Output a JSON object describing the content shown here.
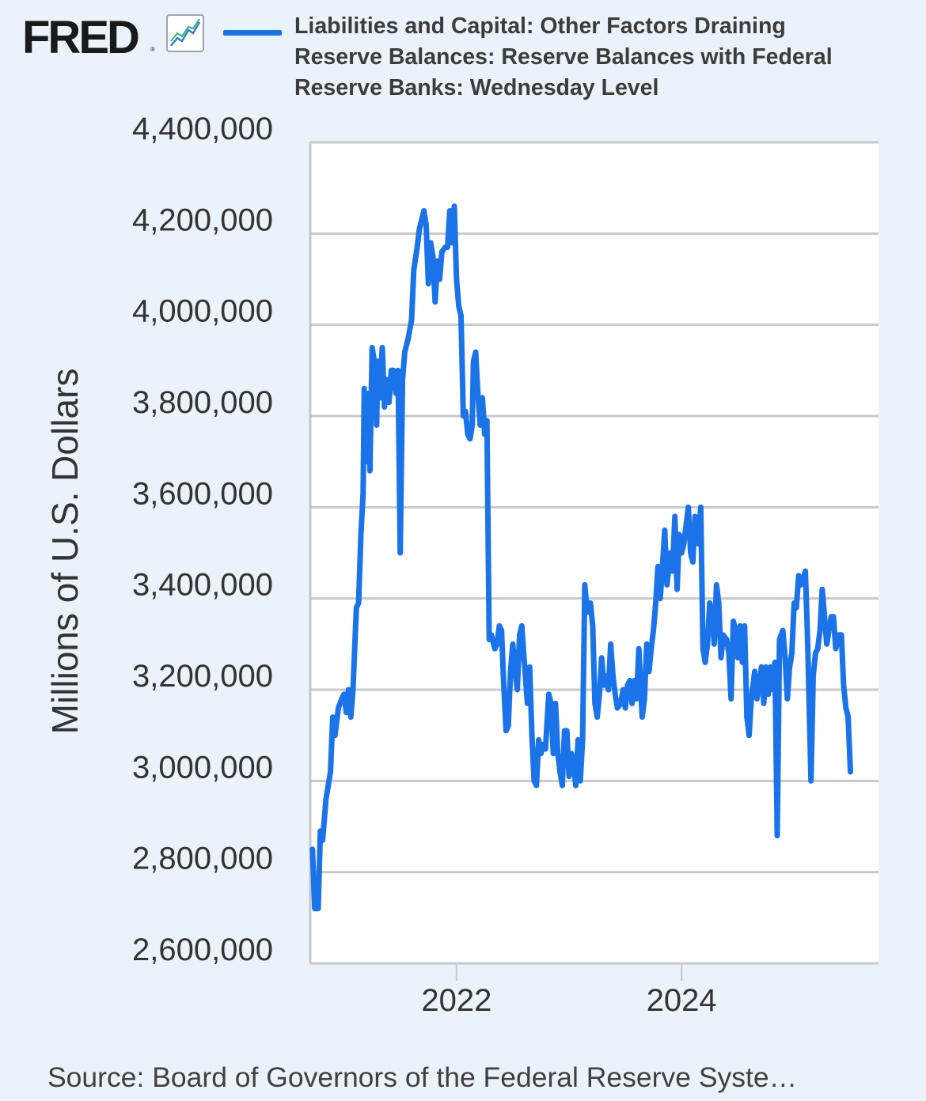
{
  "header": {
    "logo_text": "FRED",
    "logo_reg": "®",
    "logo_icon": "trend-chart-icon"
  },
  "colors": {
    "background": "#eaf2fa",
    "plot_background": "#ffffff",
    "series": "#1a73e8",
    "grid": "#c8c8c8"
  },
  "chart_data": {
    "type": "line",
    "legend": "Liabilities and Capital: Other Factors Draining Reserve Balances: Reserve Balances with Federal Reserve Banks: Wednesday Level",
    "ylabel": "Millions of U.S. Dollars",
    "xlabel": "",
    "x_unit": "year (decimal)",
    "xlim": [
      2020.7,
      2025.75
    ],
    "ylim": [
      2600000,
      4400000
    ],
    "x_ticks": [
      {
        "value": 2022,
        "label": "2022"
      },
      {
        "value": 2024,
        "label": "2024"
      }
    ],
    "y_ticks": [
      {
        "value": 4400000,
        "label": "4,400,000"
      },
      {
        "value": 4200000,
        "label": "4,200,000"
      },
      {
        "value": 4000000,
        "label": "4,000,000"
      },
      {
        "value": 3800000,
        "label": "3,800,000"
      },
      {
        "value": 3600000,
        "label": "3,600,000"
      },
      {
        "value": 3400000,
        "label": "3,400,000"
      },
      {
        "value": 3200000,
        "label": "3,200,000"
      },
      {
        "value": 3000000,
        "label": "3,000,000"
      },
      {
        "value": 2800000,
        "label": "2,800,000"
      },
      {
        "value": 2600000,
        "label": "2,600,000"
      }
    ],
    "grid": true,
    "series": [
      {
        "name": "Reserve Balances with Federal Reserve Banks: Wednesday Level",
        "points": [
          [
            2020.72,
            2850000
          ],
          [
            2020.74,
            2720000
          ],
          [
            2020.77,
            2720000
          ],
          [
            2020.79,
            2890000
          ],
          [
            2020.81,
            2870000
          ],
          [
            2020.84,
            2960000
          ],
          [
            2020.86,
            2990000
          ],
          [
            2020.88,
            3020000
          ],
          [
            2020.9,
            3140000
          ],
          [
            2020.92,
            3100000
          ],
          [
            2020.95,
            3160000
          ],
          [
            2020.98,
            3180000
          ],
          [
            2021.0,
            3190000
          ],
          [
            2021.02,
            3150000
          ],
          [
            2021.04,
            3200000
          ],
          [
            2021.06,
            3140000
          ],
          [
            2021.08,
            3200000
          ],
          [
            2021.11,
            3380000
          ],
          [
            2021.13,
            3390000
          ],
          [
            2021.15,
            3540000
          ],
          [
            2021.17,
            3630000
          ],
          [
            2021.18,
            3860000
          ],
          [
            2021.2,
            3700000
          ],
          [
            2021.22,
            3850000
          ],
          [
            2021.23,
            3680000
          ],
          [
            2021.25,
            3950000
          ],
          [
            2021.27,
            3920000
          ],
          [
            2021.29,
            3780000
          ],
          [
            2021.3,
            3920000
          ],
          [
            2021.32,
            3840000
          ],
          [
            2021.34,
            3950000
          ],
          [
            2021.36,
            3820000
          ],
          [
            2021.38,
            3880000
          ],
          [
            2021.4,
            3830000
          ],
          [
            2021.42,
            3900000
          ],
          [
            2021.44,
            3900000
          ],
          [
            2021.46,
            3850000
          ],
          [
            2021.48,
            3900000
          ],
          [
            2021.5,
            3500000
          ],
          [
            2021.52,
            3880000
          ],
          [
            2021.54,
            3940000
          ],
          [
            2021.57,
            3970000
          ],
          [
            2021.6,
            4010000
          ],
          [
            2021.62,
            4120000
          ],
          [
            2021.65,
            4170000
          ],
          [
            2021.67,
            4210000
          ],
          [
            2021.69,
            4230000
          ],
          [
            2021.71,
            4250000
          ],
          [
            2021.73,
            4220000
          ],
          [
            2021.75,
            4090000
          ],
          [
            2021.77,
            4180000
          ],
          [
            2021.79,
            4150000
          ],
          [
            2021.81,
            4050000
          ],
          [
            2021.83,
            4140000
          ],
          [
            2021.85,
            4100000
          ],
          [
            2021.87,
            4160000
          ],
          [
            2021.9,
            4170000
          ],
          [
            2021.92,
            4170000
          ],
          [
            2021.94,
            4250000
          ],
          [
            2021.96,
            4180000
          ],
          [
            2021.98,
            4260000
          ],
          [
            2022.0,
            4100000
          ],
          [
            2022.02,
            4040000
          ],
          [
            2022.04,
            4020000
          ],
          [
            2022.06,
            3800000
          ],
          [
            2022.08,
            3810000
          ],
          [
            2022.1,
            3760000
          ],
          [
            2022.12,
            3750000
          ],
          [
            2022.14,
            3780000
          ],
          [
            2022.15,
            3920000
          ],
          [
            2022.17,
            3940000
          ],
          [
            2022.19,
            3850000
          ],
          [
            2022.21,
            3780000
          ],
          [
            2022.23,
            3840000
          ],
          [
            2022.25,
            3760000
          ],
          [
            2022.27,
            3790000
          ],
          [
            2022.29,
            3310000
          ],
          [
            2022.31,
            3320000
          ],
          [
            2022.34,
            3290000
          ],
          [
            2022.36,
            3300000
          ],
          [
            2022.38,
            3340000
          ],
          [
            2022.4,
            3330000
          ],
          [
            2022.42,
            3210000
          ],
          [
            2022.44,
            3110000
          ],
          [
            2022.46,
            3120000
          ],
          [
            2022.48,
            3240000
          ],
          [
            2022.5,
            3300000
          ],
          [
            2022.52,
            3240000
          ],
          [
            2022.54,
            3200000
          ],
          [
            2022.56,
            3320000
          ],
          [
            2022.58,
            3340000
          ],
          [
            2022.6,
            3270000
          ],
          [
            2022.63,
            3170000
          ],
          [
            2022.65,
            3250000
          ],
          [
            2022.67,
            3100000
          ],
          [
            2022.69,
            3000000
          ],
          [
            2022.71,
            2990000
          ],
          [
            2022.73,
            3090000
          ],
          [
            2022.75,
            3060000
          ],
          [
            2022.77,
            3080000
          ],
          [
            2022.79,
            3070000
          ],
          [
            2022.82,
            3190000
          ],
          [
            2022.84,
            3170000
          ],
          [
            2022.86,
            3060000
          ],
          [
            2022.88,
            3170000
          ],
          [
            2022.9,
            3060000
          ],
          [
            2022.92,
            3020000
          ],
          [
            2022.94,
            2990000
          ],
          [
            2022.96,
            3110000
          ],
          [
            2022.98,
            3110000
          ],
          [
            2023.0,
            3010000
          ],
          [
            2023.02,
            3060000
          ],
          [
            2023.04,
            3040000
          ],
          [
            2023.06,
            2990000
          ],
          [
            2023.08,
            3090000
          ],
          [
            2023.1,
            3000000
          ],
          [
            2023.12,
            3090000
          ],
          [
            2023.14,
            3430000
          ],
          [
            2023.16,
            3370000
          ],
          [
            2023.19,
            3390000
          ],
          [
            2023.21,
            3340000
          ],
          [
            2023.23,
            3170000
          ],
          [
            2023.25,
            3140000
          ],
          [
            2023.27,
            3190000
          ],
          [
            2023.29,
            3270000
          ],
          [
            2023.31,
            3210000
          ],
          [
            2023.33,
            3230000
          ],
          [
            2023.35,
            3200000
          ],
          [
            2023.37,
            3300000
          ],
          [
            2023.39,
            3230000
          ],
          [
            2023.41,
            3190000
          ],
          [
            2023.43,
            3160000
          ],
          [
            2023.46,
            3170000
          ],
          [
            2023.48,
            3200000
          ],
          [
            2023.5,
            3160000
          ],
          [
            2023.52,
            3210000
          ],
          [
            2023.54,
            3220000
          ],
          [
            2023.56,
            3170000
          ],
          [
            2023.58,
            3220000
          ],
          [
            2023.6,
            3180000
          ],
          [
            2023.62,
            3290000
          ],
          [
            2023.65,
            3140000
          ],
          [
            2023.67,
            3180000
          ],
          [
            2023.69,
            3300000
          ],
          [
            2023.71,
            3240000
          ],
          [
            2023.73,
            3290000
          ],
          [
            2023.75,
            3330000
          ],
          [
            2023.77,
            3390000
          ],
          [
            2023.79,
            3470000
          ],
          [
            2023.81,
            3400000
          ],
          [
            2023.83,
            3470000
          ],
          [
            2023.85,
            3550000
          ],
          [
            2023.87,
            3430000
          ],
          [
            2023.9,
            3500000
          ],
          [
            2023.92,
            3460000
          ],
          [
            2023.94,
            3580000
          ],
          [
            2023.96,
            3420000
          ],
          [
            2023.98,
            3540000
          ],
          [
            2024.0,
            3500000
          ],
          [
            2024.02,
            3520000
          ],
          [
            2024.04,
            3560000
          ],
          [
            2024.06,
            3600000
          ],
          [
            2024.08,
            3500000
          ],
          [
            2024.1,
            3480000
          ],
          [
            2024.12,
            3580000
          ],
          [
            2024.15,
            3520000
          ],
          [
            2024.17,
            3600000
          ],
          [
            2024.19,
            3290000
          ],
          [
            2024.21,
            3260000
          ],
          [
            2024.23,
            3300000
          ],
          [
            2024.25,
            3390000
          ],
          [
            2024.27,
            3370000
          ],
          [
            2024.29,
            3300000
          ],
          [
            2024.31,
            3430000
          ],
          [
            2024.33,
            3390000
          ],
          [
            2024.35,
            3270000
          ],
          [
            2024.37,
            3320000
          ],
          [
            2024.4,
            3310000
          ],
          [
            2024.42,
            3280000
          ],
          [
            2024.44,
            3180000
          ],
          [
            2024.46,
            3350000
          ],
          [
            2024.48,
            3330000
          ],
          [
            2024.5,
            3270000
          ],
          [
            2024.52,
            3340000
          ],
          [
            2024.54,
            3260000
          ],
          [
            2024.56,
            3340000
          ],
          [
            2024.58,
            3140000
          ],
          [
            2024.6,
            3100000
          ],
          [
            2024.62,
            3180000
          ],
          [
            2024.65,
            3240000
          ],
          [
            2024.67,
            3180000
          ],
          [
            2024.69,
            3210000
          ],
          [
            2024.71,
            3250000
          ],
          [
            2024.73,
            3170000
          ],
          [
            2024.75,
            3250000
          ],
          [
            2024.77,
            3190000
          ],
          [
            2024.79,
            3250000
          ],
          [
            2024.81,
            3200000
          ],
          [
            2024.83,
            3260000
          ],
          [
            2024.85,
            2880000
          ],
          [
            2024.87,
            3310000
          ],
          [
            2024.9,
            3330000
          ],
          [
            2024.92,
            3270000
          ],
          [
            2024.94,
            3180000
          ],
          [
            2024.96,
            3250000
          ],
          [
            2024.98,
            3280000
          ],
          [
            2025.0,
            3390000
          ],
          [
            2025.02,
            3380000
          ],
          [
            2025.04,
            3450000
          ],
          [
            2025.06,
            3430000
          ],
          [
            2025.08,
            3440000
          ],
          [
            2025.1,
            3460000
          ],
          [
            2025.12,
            3310000
          ],
          [
            2025.15,
            3000000
          ],
          [
            2025.17,
            3230000
          ],
          [
            2025.19,
            3280000
          ],
          [
            2025.21,
            3290000
          ],
          [
            2025.23,
            3330000
          ],
          [
            2025.25,
            3420000
          ],
          [
            2025.27,
            3360000
          ],
          [
            2025.29,
            3300000
          ],
          [
            2025.31,
            3330000
          ],
          [
            2025.33,
            3360000
          ],
          [
            2025.35,
            3360000
          ],
          [
            2025.37,
            3290000
          ],
          [
            2025.4,
            3320000
          ],
          [
            2025.42,
            3320000
          ],
          [
            2025.44,
            3210000
          ],
          [
            2025.46,
            3160000
          ],
          [
            2025.48,
            3140000
          ],
          [
            2025.5,
            3020000
          ]
        ]
      }
    ]
  },
  "footer": {
    "source": "Source: Board of Governors of the Federal Reserve Syste…"
  }
}
